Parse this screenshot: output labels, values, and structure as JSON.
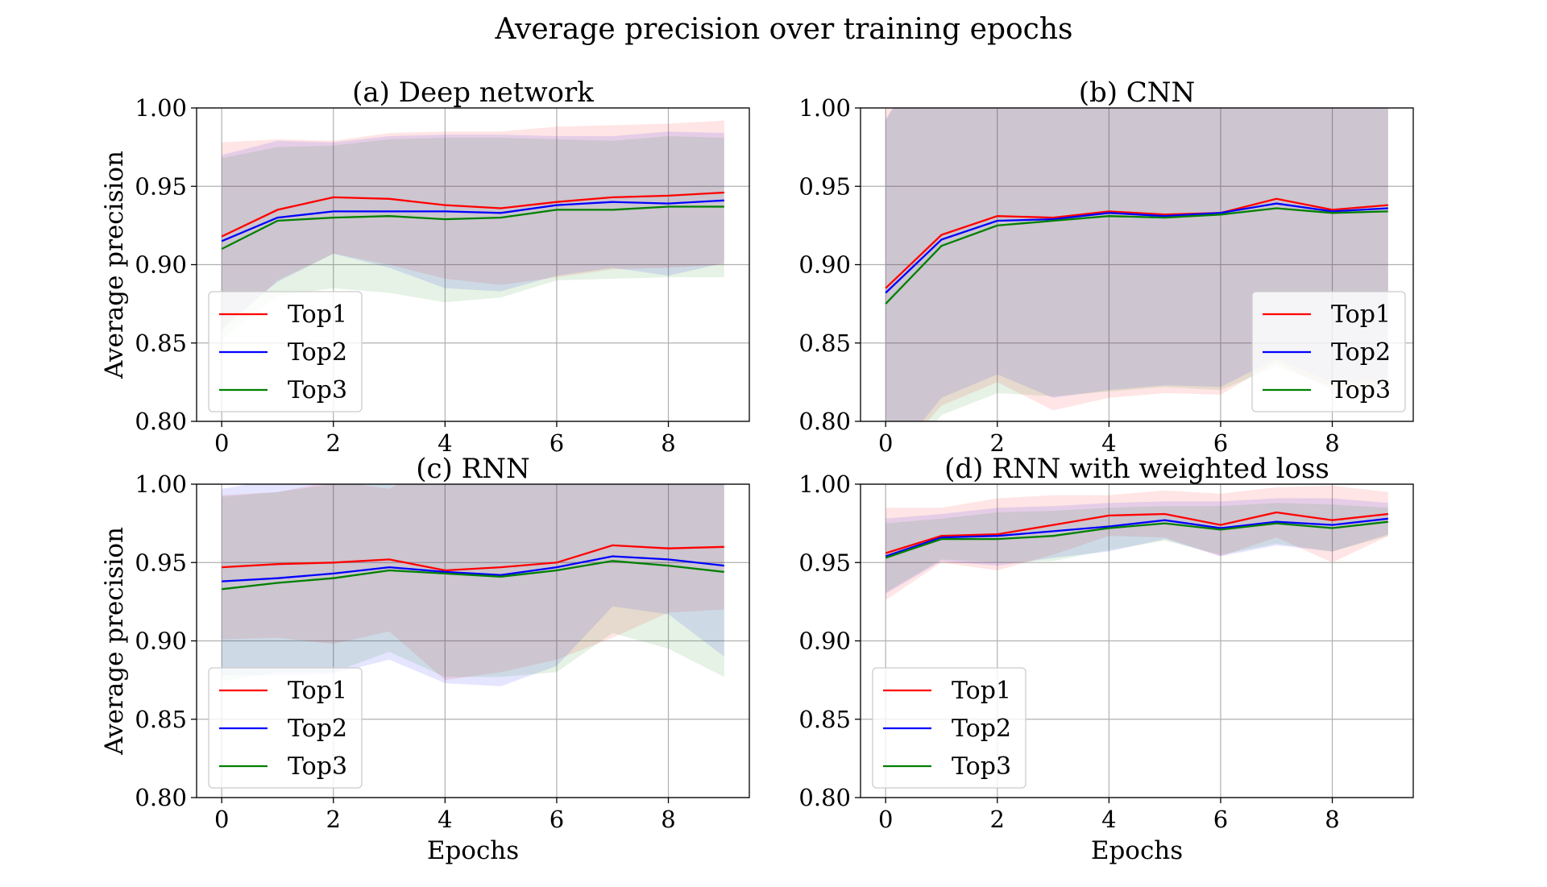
{
  "figure": {
    "title": "Average precision over training epochs"
  },
  "colors": {
    "Top1": "#ff0000",
    "Top2": "#0000ff",
    "Top3": "#008000"
  },
  "chart_data": [
    {
      "type": "line",
      "title": "(a) Deep network",
      "xlabel": "",
      "ylabel": "Average precision",
      "xlim": [
        -0.45,
        9.45
      ],
      "ylim": [
        0.8,
        1.0
      ],
      "xticks": [
        0,
        2,
        4,
        6,
        8
      ],
      "yticks": [
        "0.80",
        "0.85",
        "0.90",
        "0.95",
        "1.00"
      ],
      "grid": true,
      "legend_position": "lower-left",
      "x": [
        0,
        1,
        2,
        3,
        4,
        5,
        6,
        7,
        8,
        9
      ],
      "series": [
        {
          "name": "Top1",
          "values": [
            0.918,
            0.935,
            0.943,
            0.942,
            0.938,
            0.936,
            0.94,
            0.943,
            0.944,
            0.946
          ],
          "upper": [
            0.978,
            0.98,
            0.979,
            0.984,
            0.985,
            0.985,
            0.988,
            0.989,
            0.99,
            0.992
          ],
          "lower": [
            0.858,
            0.89,
            0.907,
            0.9,
            0.891,
            0.887,
            0.892,
            0.897,
            0.898,
            0.9
          ]
        },
        {
          "name": "Top2",
          "values": [
            0.915,
            0.93,
            0.934,
            0.934,
            0.934,
            0.933,
            0.938,
            0.94,
            0.939,
            0.941
          ],
          "upper": [
            0.97,
            0.979,
            0.978,
            0.982,
            0.983,
            0.983,
            0.982,
            0.982,
            0.985,
            0.984
          ],
          "lower": [
            0.86,
            0.889,
            0.907,
            0.898,
            0.885,
            0.883,
            0.893,
            0.898,
            0.893,
            0.901
          ]
        },
        {
          "name": "Top3",
          "values": [
            0.91,
            0.928,
            0.93,
            0.931,
            0.929,
            0.93,
            0.935,
            0.935,
            0.937,
            0.937
          ],
          "upper": [
            0.968,
            0.975,
            0.976,
            0.98,
            0.981,
            0.981,
            0.98,
            0.979,
            0.982,
            0.981
          ],
          "lower": [
            0.852,
            0.88,
            0.885,
            0.882,
            0.876,
            0.879,
            0.89,
            0.891,
            0.892,
            0.892
          ]
        }
      ]
    },
    {
      "type": "line",
      "title": "(b) CNN",
      "xlabel": "",
      "ylabel": "",
      "xlim": [
        -0.45,
        9.45
      ],
      "ylim": [
        0.8,
        1.0
      ],
      "xticks": [
        0,
        2,
        4,
        6,
        8
      ],
      "yticks": [
        "0.80",
        "0.85",
        "0.90",
        "0.95",
        "1.00"
      ],
      "grid": true,
      "legend_position": "lower-right",
      "x": [
        0,
        1,
        2,
        3,
        4,
        5,
        6,
        7,
        8,
        9
      ],
      "series": [
        {
          "name": "Top1",
          "values": [
            0.885,
            0.919,
            0.931,
            0.93,
            0.934,
            0.932,
            0.933,
            0.942,
            0.935,
            0.938
          ],
          "upper": [
            1.05,
            1.05,
            1.05,
            1.05,
            1.05,
            1.05,
            1.05,
            1.05,
            1.05,
            1.05
          ],
          "lower": [
            0.77,
            0.81,
            0.825,
            0.807,
            0.815,
            0.818,
            0.817,
            0.838,
            0.82,
            0.822
          ]
        },
        {
          "name": "Top2",
          "values": [
            0.882,
            0.916,
            0.928,
            0.929,
            0.933,
            0.931,
            0.933,
            0.939,
            0.934,
            0.936
          ],
          "upper": [
            0.993,
            1.05,
            1.05,
            1.05,
            1.05,
            1.05,
            1.05,
            1.05,
            1.05,
            1.05
          ],
          "lower": [
            0.771,
            0.815,
            0.83,
            0.815,
            0.82,
            0.823,
            0.822,
            0.84,
            0.825,
            0.827
          ]
        },
        {
          "name": "Top3",
          "values": [
            0.875,
            0.912,
            0.925,
            0.928,
            0.931,
            0.93,
            0.932,
            0.936,
            0.933,
            0.934
          ],
          "upper": [
            0.992,
            1.05,
            1.05,
            1.05,
            1.05,
            1.05,
            1.05,
            1.05,
            1.05,
            1.05
          ],
          "lower": [
            0.758,
            0.804,
            0.818,
            0.816,
            0.819,
            0.822,
            0.82,
            0.835,
            0.822,
            0.823
          ]
        }
      ]
    },
    {
      "type": "line",
      "title": "(c) RNN",
      "xlabel": "Epochs",
      "ylabel": "Average precision",
      "xlim": [
        -0.45,
        9.45
      ],
      "ylim": [
        0.8,
        1.0
      ],
      "xticks": [
        0,
        2,
        4,
        6,
        8
      ],
      "yticks": [
        "0.80",
        "0.85",
        "0.90",
        "0.95",
        "1.00"
      ],
      "grid": true,
      "legend_position": "lower-left",
      "x": [
        0,
        1,
        2,
        3,
        4,
        5,
        6,
        7,
        8,
        9
      ],
      "series": [
        {
          "name": "Top1",
          "values": [
            0.947,
            0.949,
            0.95,
            0.952,
            0.945,
            0.947,
            0.95,
            0.961,
            0.959,
            0.96
          ],
          "upper": [
            0.993,
            0.995,
            1.002,
            0.997,
            1.015,
            1.015,
            1.012,
            1.02,
            1.0,
            1.0
          ],
          "lower": [
            0.901,
            0.902,
            0.898,
            0.906,
            0.875,
            0.88,
            0.888,
            0.902,
            0.918,
            0.92
          ]
        },
        {
          "name": "Top2",
          "values": [
            0.938,
            0.94,
            0.943,
            0.947,
            0.944,
            0.942,
            0.947,
            0.954,
            0.952,
            0.948
          ],
          "upper": [
            0.997,
            1.003,
            1.005,
            1.01,
            1.015,
            1.012,
            1.008,
            1.01,
            1.01,
            1.0
          ],
          "lower": [
            0.878,
            0.878,
            0.879,
            0.888,
            0.873,
            0.871,
            0.884,
            0.922,
            0.917,
            0.89
          ]
        },
        {
          "name": "Top3",
          "values": [
            0.933,
            0.937,
            0.94,
            0.945,
            0.943,
            0.941,
            0.945,
            0.951,
            0.948,
            0.944
          ],
          "upper": [
            0.992,
            0.995,
            1.0,
            1.0,
            1.01,
            1.005,
            1.005,
            1.0,
            1.0,
            1.0
          ],
          "lower": [
            0.874,
            0.88,
            0.88,
            0.893,
            0.877,
            0.877,
            0.88,
            0.905,
            0.895,
            0.877
          ]
        }
      ]
    },
    {
      "type": "line",
      "title": "(d) RNN with weighted loss",
      "xlabel": "Epochs",
      "ylabel": "",
      "xlim": [
        -0.45,
        9.45
      ],
      "ylim": [
        0.8,
        1.0
      ],
      "xticks": [
        0,
        2,
        4,
        6,
        8
      ],
      "yticks": [
        "0.80",
        "0.85",
        "0.90",
        "0.95",
        "1.00"
      ],
      "grid": true,
      "legend_position": "lower-left",
      "x": [
        0,
        1,
        2,
        3,
        4,
        5,
        6,
        7,
        8,
        9
      ],
      "series": [
        {
          "name": "Top1",
          "values": [
            0.956,
            0.967,
            0.968,
            0.974,
            0.98,
            0.981,
            0.974,
            0.982,
            0.977,
            0.981
          ],
          "upper": [
            0.985,
            0.985,
            0.991,
            0.993,
            0.993,
            0.996,
            0.994,
            0.998,
            0.999,
            0.995
          ],
          "lower": [
            0.926,
            0.95,
            0.945,
            0.955,
            0.967,
            0.966,
            0.954,
            0.966,
            0.95,
            0.967
          ]
        },
        {
          "name": "Top2",
          "values": [
            0.954,
            0.966,
            0.967,
            0.97,
            0.973,
            0.977,
            0.972,
            0.976,
            0.974,
            0.978
          ],
          "upper": [
            0.978,
            0.981,
            0.985,
            0.986,
            0.988,
            0.989,
            0.989,
            0.991,
            0.991,
            0.988
          ],
          "lower": [
            0.93,
            0.951,
            0.948,
            0.953,
            0.957,
            0.965,
            0.954,
            0.961,
            0.957,
            0.968
          ]
        },
        {
          "name": "Top3",
          "values": [
            0.953,
            0.965,
            0.965,
            0.967,
            0.972,
            0.975,
            0.971,
            0.975,
            0.972,
            0.976
          ],
          "upper": [
            0.975,
            0.978,
            0.982,
            0.983,
            0.985,
            0.986,
            0.986,
            0.988,
            0.987,
            0.985
          ],
          "lower": [
            0.931,
            0.952,
            0.95,
            0.951,
            0.958,
            0.964,
            0.955,
            0.962,
            0.957,
            0.967
          ]
        }
      ]
    }
  ]
}
